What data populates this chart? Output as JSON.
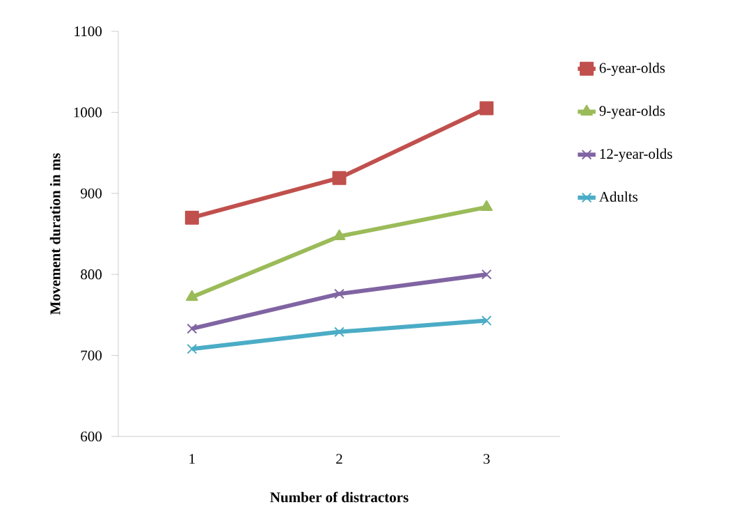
{
  "chart_data": {
    "type": "line",
    "xlabel": "Number of distractors",
    "ylabel": "Movement duration in ms",
    "categories": [
      "1",
      "2",
      "3"
    ],
    "ylim": [
      600,
      1100
    ],
    "yticks": [
      600,
      700,
      800,
      900,
      1000,
      1100
    ],
    "legend": "top right",
    "line_style": "solid",
    "series": [
      {
        "name": "6-year-olds",
        "color": "#c0504d",
        "marker": "square",
        "values": [
          870,
          919,
          1005
        ]
      },
      {
        "name": "9-year-olds",
        "color": "#9bbb59",
        "marker": "triangle",
        "values": [
          772,
          847,
          883
        ]
      },
      {
        "name": "12-year-olds",
        "color": "#8064a2",
        "marker": "cross",
        "values": [
          733,
          776,
          800
        ]
      },
      {
        "name": "Adults",
        "color": "#4bacc6",
        "marker": "cross",
        "values": [
          708,
          729,
          743
        ]
      }
    ]
  }
}
